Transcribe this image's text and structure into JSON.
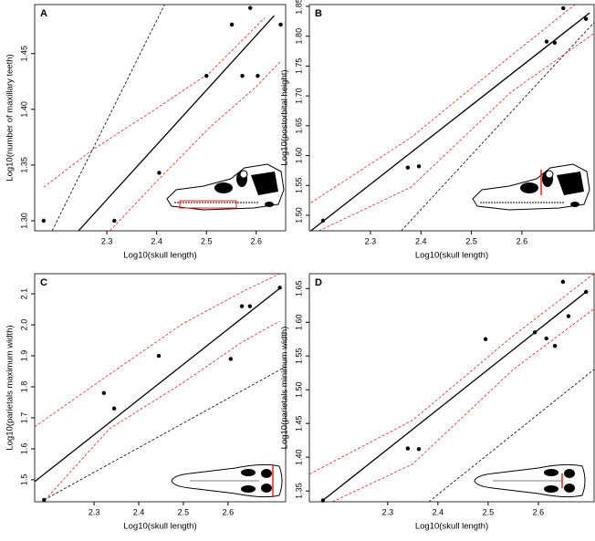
{
  "chart_data": [
    {
      "type": "scatter",
      "panel": "A",
      "xlabel": "Log10(skull length)",
      "ylabel": "Log10(number of maxillary teeth)",
      "x": [
        2.173,
        2.315,
        2.405,
        2.5,
        2.551,
        2.572,
        2.588,
        2.603,
        2.649
      ],
      "values": [
        1.3,
        1.3,
        1.343,
        1.43,
        1.476,
        1.43,
        1.491,
        1.43,
        1.476
      ],
      "color": "#000000",
      "xlim": [
        2.155,
        2.659
      ],
      "ylim": [
        1.291,
        1.494
      ],
      "xticks": [
        2.3,
        2.4,
        2.5,
        2.6
      ],
      "yticks": [
        {
          "value": 1.3,
          "label": "1.30"
        },
        1.35,
        {
          "value": 1.4,
          "label": "1.40"
        },
        1.45
      ],
      "lines": [
        {
          "style": "solid",
          "color": "#000000",
          "x": [
            2.243,
            2.636
          ],
          "y": [
            1.291,
            1.484
          ]
        },
        {
          "style": "dashed",
          "color": "#000000",
          "x": [
            2.19,
            2.416
          ],
          "y": [
            1.291,
            1.494
          ]
        },
        {
          "style": "dashed",
          "color": "#e8221c",
          "x": [
            2.173,
            2.269,
            2.397,
            2.507,
            2.617
          ],
          "y": [
            1.33,
            1.363,
            1.4,
            1.433,
            1.482
          ]
        },
        {
          "style": "dashed",
          "color": "#e8221c",
          "x": [
            2.306,
            2.397,
            2.507,
            2.599,
            2.649
          ],
          "y": [
            1.291,
            1.334,
            1.384,
            1.42,
            1.443
          ]
        }
      ]
    },
    {
      "type": "scatter",
      "panel": "B",
      "xlabel": "Log10(skull length)",
      "ylabel": "Log10(postorbital height)",
      "x": [
        2.206,
        2.374,
        2.396,
        2.649,
        2.665,
        2.682,
        2.727
      ],
      "values": [
        1.491,
        1.58,
        1.582,
        1.791,
        1.789,
        1.847,
        1.829
      ],
      "color": "#000000",
      "xlim": [
        2.179,
        2.743
      ],
      "ylim": [
        1.474,
        1.853
      ],
      "xticks": [
        2.3,
        2.4,
        2.5,
        2.6
      ],
      "yticks": [
        {
          "value": 1.5,
          "label": "1.50"
        },
        1.55,
        {
          "value": 1.6,
          "label": "1.60"
        },
        1.65,
        {
          "value": 1.7,
          "label": "1.70"
        },
        1.75,
        {
          "value": 1.8,
          "label": "1.80"
        },
        1.85
      ],
      "lines": [
        {
          "style": "solid",
          "color": "#000000",
          "x": [
            2.182,
            2.734
          ],
          "y": [
            1.474,
            1.839
          ]
        },
        {
          "style": "dashed",
          "color": "#000000",
          "x": [
            2.361,
            2.743
          ],
          "y": [
            1.474,
            1.823
          ]
        },
        {
          "style": "dashed",
          "color": "#e8221c",
          "x": [
            2.182,
            2.38,
            2.578,
            2.705
          ],
          "y": [
            1.521,
            1.63,
            1.767,
            1.853
          ]
        },
        {
          "style": "dashed",
          "color": "#e8221c",
          "x": [
            2.198,
            2.38,
            2.578,
            2.743
          ],
          "y": [
            1.474,
            1.547,
            1.706,
            1.805
          ]
        }
      ]
    },
    {
      "type": "scatter",
      "panel": "C",
      "xlabel": "Log10(skull length)",
      "ylabel": "Log10(parietals maximum width)",
      "x": [
        2.188,
        2.322,
        2.345,
        2.445,
        2.606,
        2.631,
        2.649,
        2.716
      ],
      "values": [
        1.435,
        1.78,
        1.73,
        1.9,
        1.89,
        2.06,
        2.06,
        2.12
      ],
      "color": "#000000",
      "xlim": [
        2.167,
        2.729
      ],
      "ylim": [
        1.429,
        2.165
      ],
      "xticks": [
        2.3,
        2.4,
        2.5,
        2.6
      ],
      "yticks": [
        1.5,
        1.6,
        1.7,
        1.8,
        1.9,
        {
          "value": 2.0,
          "label": "2.0"
        },
        2.1
      ],
      "lines": [
        {
          "style": "solid",
          "color": "#000000",
          "x": [
            2.167,
            2.716
          ],
          "y": [
            1.494,
            2.118
          ]
        },
        {
          "style": "dashed",
          "color": "#000000",
          "x": [
            2.188,
            2.729
          ],
          "y": [
            1.435,
            1.865
          ]
        },
        {
          "style": "dashed",
          "color": "#e8221c",
          "x": [
            2.167,
            2.335,
            2.498,
            2.631,
            2.716
          ],
          "y": [
            1.671,
            1.841,
            2.003,
            2.106,
            2.165
          ]
        },
        {
          "style": "dashed",
          "color": "#e8221c",
          "x": [
            2.19,
            2.335,
            2.498,
            2.631,
            2.716
          ],
          "y": [
            1.435,
            1.665,
            1.812,
            1.944,
            2.012
          ]
        }
      ]
    },
    {
      "type": "scatter",
      "panel": "D",
      "xlabel": "Log10(skull length)",
      "ylabel": "Log10(parietals minimum width)",
      "x": [
        2.171,
        2.34,
        2.362,
        2.495,
        2.593,
        2.616,
        2.633,
        2.649,
        2.66,
        2.695
      ],
      "values": [
        1.336,
        1.413,
        1.412,
        1.575,
        1.585,
        1.576,
        1.565,
        1.66,
        1.609,
        1.645
      ],
      "color": "#000000",
      "xlim": [
        2.144,
        2.711
      ],
      "ylim": [
        1.334,
        1.672
      ],
      "xticks": [
        2.3,
        2.4,
        2.5,
        2.6
      ],
      "yticks": [
        1.35,
        {
          "value": 1.4,
          "label": "1.40"
        },
        1.45,
        {
          "value": 1.5,
          "label": "1.50"
        },
        1.55,
        {
          "value": 1.6,
          "label": "1.60"
        },
        1.65
      ],
      "lines": [
        {
          "style": "solid",
          "color": "#000000",
          "x": [
            2.171,
            2.695
          ],
          "y": [
            1.336,
            1.645
          ]
        },
        {
          "style": "dashed",
          "color": "#000000",
          "x": [
            2.382,
            2.711
          ],
          "y": [
            1.334,
            1.53
          ]
        },
        {
          "style": "dashed",
          "color": "#e8221c",
          "x": [
            2.144,
            2.35,
            2.55,
            2.711
          ],
          "y": [
            1.375,
            1.455,
            1.58,
            1.672
          ]
        },
        {
          "style": "dashed",
          "color": "#e8221c",
          "x": [
            2.19,
            2.35,
            2.55,
            2.711
          ],
          "y": [
            1.334,
            1.39,
            1.53,
            1.62
          ]
        }
      ]
    }
  ]
}
